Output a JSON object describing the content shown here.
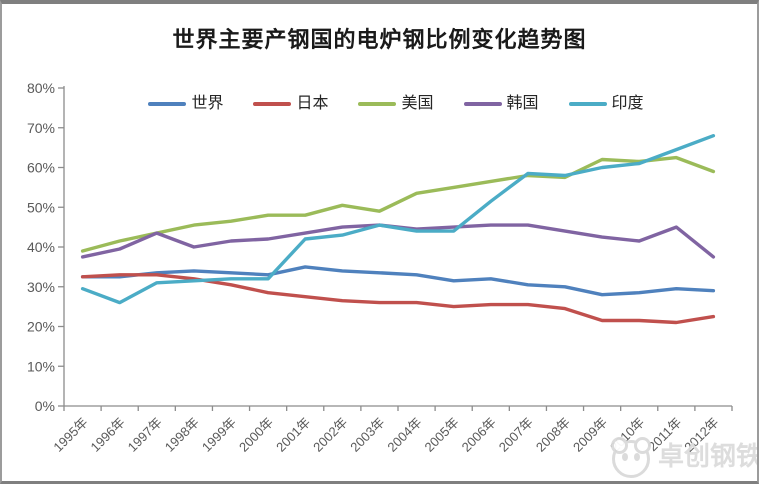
{
  "title": "世界主要产钢国的电炉钢比例变化趋势图",
  "watermark": {
    "text": "卓创钢铁",
    "logo": "panda-logo"
  },
  "colors": {
    "axis_line": "#8c8c8c",
    "tick_label": "#595959",
    "title_text": "#1a1a1a",
    "legend_text": "#262626",
    "frame_border": "#7f7f7f",
    "watermark": "#dcdcdc",
    "background": "#ffffff"
  },
  "chart_data": {
    "type": "line",
    "title": "世界主要产钢国的电炉钢比例变化趋势图",
    "categories": [
      "1995年",
      "1996年",
      "1997年",
      "1998年",
      "1999年",
      "2000年",
      "2001年",
      "2002年",
      "2003年",
      "2004年",
      "2005年",
      "2006年",
      "2007年",
      "2008年",
      "2009年",
      "2010年",
      "2011年",
      "2012年"
    ],
    "ytick_labels": [
      "0%",
      "10%",
      "20%",
      "30%",
      "40%",
      "50%",
      "60%",
      "70%",
      "80%"
    ],
    "ylim": [
      0,
      80
    ],
    "ytick_step": 10,
    "ytick_format": "percent",
    "xlabel": "",
    "ylabel": "",
    "grid": false,
    "legend_position": "top-inside",
    "series": [
      {
        "name": "世界",
        "color": "#4F81BD",
        "values": [
          32.5,
          32.5,
          33.5,
          34,
          33.5,
          33,
          35,
          34,
          33.5,
          33,
          31.5,
          32,
          30.5,
          30,
          28,
          28.5,
          29.5,
          29
        ]
      },
      {
        "name": "日本",
        "color": "#C0504D",
        "values": [
          32.5,
          33,
          33,
          32,
          30.5,
          28.5,
          27.5,
          26.5,
          26,
          26,
          25,
          25.5,
          25.5,
          24.5,
          21.5,
          21.5,
          21,
          22.5
        ]
      },
      {
        "name": "美国",
        "color": "#9BBB59",
        "values": [
          39,
          41.5,
          43.5,
          45.5,
          46.5,
          48,
          48,
          50.5,
          49,
          53.5,
          55,
          56.5,
          58,
          57.5,
          62,
          61.5,
          62.5,
          59
        ]
      },
      {
        "name": "韩国",
        "color": "#8064A2",
        "values": [
          37.5,
          39.5,
          43.5,
          40,
          41.5,
          42,
          43.5,
          45,
          45.5,
          44.5,
          45,
          45.5,
          45.5,
          44,
          42.5,
          41.5,
          45,
          37.5
        ]
      },
      {
        "name": "印度",
        "color": "#4BACC6",
        "values": [
          29.5,
          26,
          31,
          31.5,
          32,
          32,
          42,
          43,
          45.5,
          44,
          44,
          51.5,
          58.5,
          58,
          60,
          61,
          64.5,
          68
        ]
      }
    ]
  }
}
